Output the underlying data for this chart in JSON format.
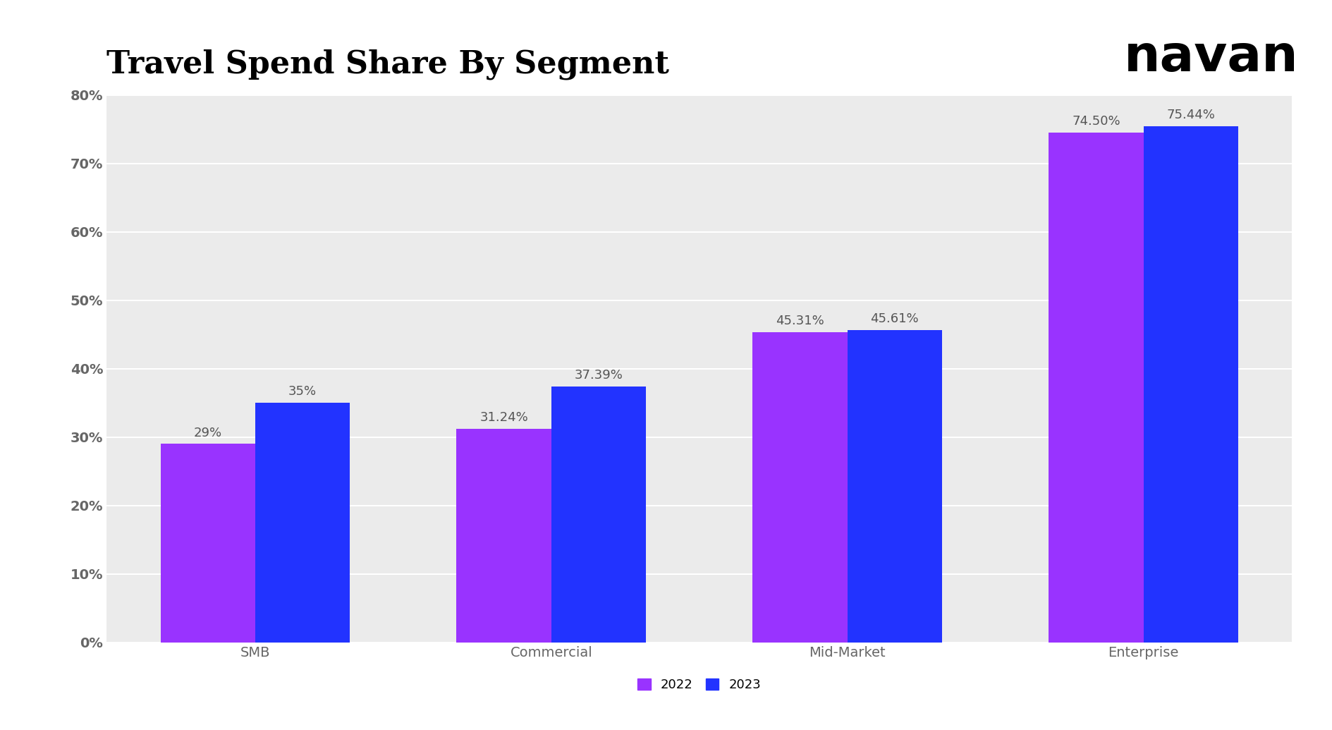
{
  "title": "Travel Spend Share By Segment",
  "categories": [
    "SMB",
    "Commercial",
    "Mid-Market",
    "Enterprise"
  ],
  "values_2022": [
    29.0,
    31.24,
    45.31,
    74.5
  ],
  "values_2023": [
    35.0,
    37.39,
    45.61,
    75.44
  ],
  "labels_2022": [
    "29%",
    "31.24%",
    "45.31%",
    "74.50%"
  ],
  "labels_2023": [
    "35%",
    "37.39%",
    "45.61%",
    "75.44%"
  ],
  "color_2022": "#9933FF",
  "color_2023": "#2233FF",
  "figure_bg": "#FFFFFF",
  "plot_bg": "#EBEBEB",
  "ylim": [
    0,
    80
  ],
  "yticks": [
    0,
    10,
    20,
    30,
    40,
    50,
    60,
    70,
    80
  ],
  "ytick_labels": [
    "0%",
    "10%",
    "20%",
    "30%",
    "40%",
    "50%",
    "60%",
    "70%",
    "80%"
  ],
  "title_fontsize": 32,
  "tick_fontsize": 14,
  "label_fontsize": 13,
  "legend_fontsize": 13,
  "bar_width": 0.32,
  "navan_text": "navan",
  "navan_fontsize": 52,
  "label_color": "#555555",
  "tick_color": "#666666"
}
